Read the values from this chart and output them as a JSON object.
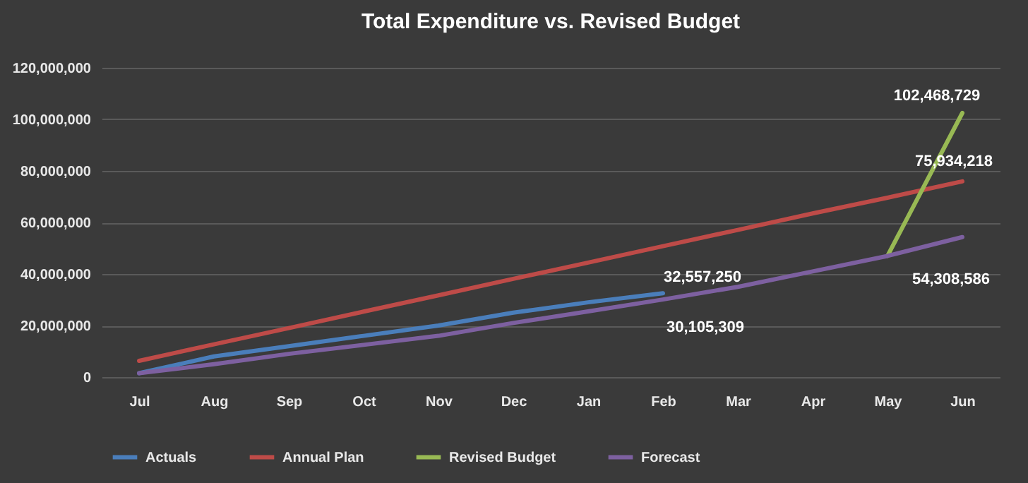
{
  "chart_data": {
    "type": "line",
    "title": "Total Expenditure vs. Revised Budget",
    "categories": [
      "Jul",
      "Aug",
      "Sep",
      "Oct",
      "Nov",
      "Dec",
      "Jan",
      "Feb",
      "Mar",
      "Apr",
      "May",
      "Jun"
    ],
    "series": [
      {
        "name": "Actuals",
        "color": "#4a7ebb",
        "values": [
          1500000,
          8000000,
          12000000,
          16000000,
          20000000,
          25000000,
          29000000,
          32557250,
          null,
          null,
          null,
          null
        ],
        "value_labels": [
          null,
          null,
          null,
          null,
          null,
          null,
          null,
          "32,557,250",
          null,
          null,
          null,
          null
        ]
      },
      {
        "name": "Annual Plan",
        "color": "#be4b48",
        "values": [
          6300000,
          12700000,
          19000000,
          25400000,
          31700000,
          38100000,
          44400000,
          50800000,
          57100000,
          63500000,
          69600000,
          75934218
        ],
        "value_labels": [
          null,
          null,
          null,
          null,
          null,
          null,
          null,
          null,
          null,
          null,
          null,
          "75,934,218"
        ]
      },
      {
        "name": "Revised Budget",
        "color": "#98b954",
        "values": [
          null,
          null,
          null,
          null,
          null,
          null,
          null,
          null,
          null,
          null,
          47000000,
          102468729
        ],
        "value_labels": [
          null,
          null,
          null,
          null,
          null,
          null,
          null,
          null,
          null,
          null,
          null,
          "102,468,729"
        ]
      },
      {
        "name": "Forecast",
        "color": "#7d60a0",
        "values": [
          1500000,
          5000000,
          9000000,
          12500000,
          16000000,
          21000000,
          25500000,
          30105309,
          35000000,
          41000000,
          47000000,
          54308586
        ],
        "value_labels": [
          null,
          null,
          null,
          null,
          null,
          null,
          null,
          "30,105,309",
          null,
          null,
          null,
          "54,308,586"
        ]
      }
    ],
    "ylim": [
      0,
      120000000
    ],
    "yticks": [
      {
        "value": 0,
        "label": "0"
      },
      {
        "value": 20000000,
        "label": "20,000,000"
      },
      {
        "value": 40000000,
        "label": "40,000,000"
      },
      {
        "value": 60000000,
        "label": "60,000,000"
      },
      {
        "value": 80000000,
        "label": "80,000,000"
      },
      {
        "value": 100000000,
        "label": "100,000,000"
      },
      {
        "value": 120000000,
        "label": "120,000,000"
      }
    ],
    "grid": "y",
    "legend": "bottom",
    "marker": "none",
    "line_style": "solid"
  }
}
